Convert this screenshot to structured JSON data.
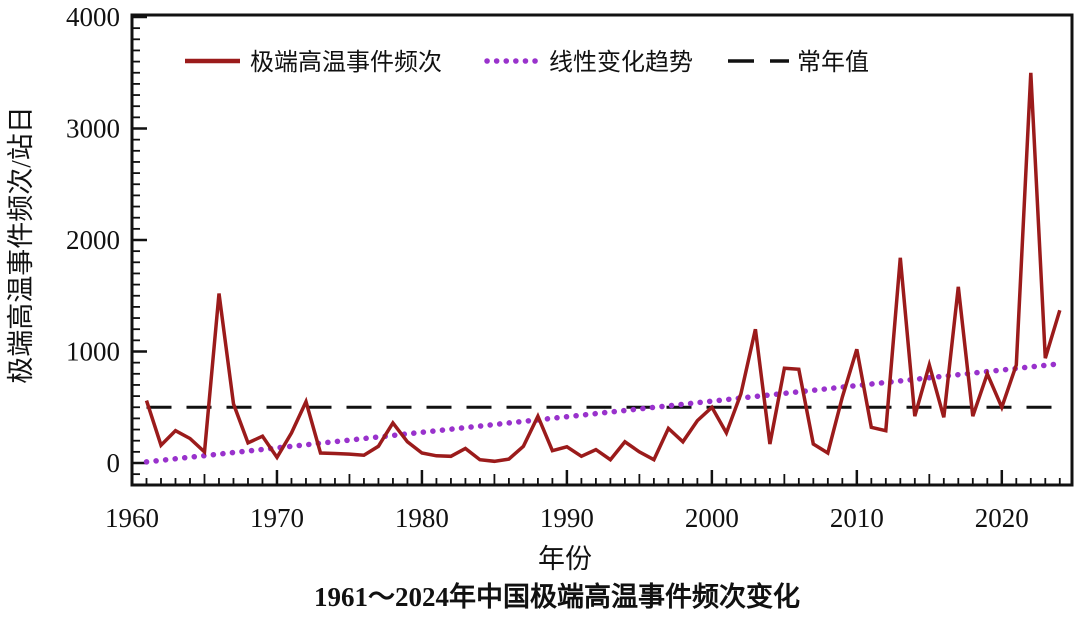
{
  "figure": {
    "title": "1961～2024年中国极端高温事件频次变化",
    "xlabel": "年份",
    "ylabel": "极端高温事件频次/站日"
  },
  "legend": {
    "position": "top-inside",
    "items": [
      {
        "label": "极端高温事件频次",
        "style": "solid",
        "color": "#9B1B1B"
      },
      {
        "label": "线性变化趋势",
        "style": "dotted",
        "color": "#9932CC"
      },
      {
        "label": "常年值",
        "style": "dashed",
        "color": "#111111"
      }
    ]
  },
  "chart_data": {
    "type": "line",
    "title": "1961～2024年中国极端高温事件频次变化",
    "xlabel": "年份",
    "ylabel": "极端高温事件频次/站日",
    "x_ticks": [
      1960,
      1970,
      1980,
      1990,
      2000,
      2010,
      2020
    ],
    "y_ticks": [
      0,
      1000,
      2000,
      3000,
      4000
    ],
    "xlim": [
      1960,
      2024.8
    ],
    "ylim": [
      -200,
      4020
    ],
    "grid": false,
    "series": [
      {
        "name": "极端高温事件频次",
        "x": [
          1961,
          1962,
          1963,
          1964,
          1965,
          1966,
          1967,
          1968,
          1969,
          1970,
          1971,
          1972,
          1973,
          1974,
          1975,
          1976,
          1977,
          1978,
          1979,
          1980,
          1981,
          1982,
          1983,
          1984,
          1985,
          1986,
          1987,
          1988,
          1989,
          1990,
          1991,
          1992,
          1993,
          1994,
          1995,
          1996,
          1997,
          1998,
          1999,
          2000,
          2001,
          2002,
          2003,
          2004,
          2005,
          2006,
          2007,
          2008,
          2009,
          2010,
          2011,
          2012,
          2013,
          2014,
          2015,
          2016,
          2017,
          2018,
          2019,
          2020,
          2021,
          2022,
          2023,
          2024
        ],
        "values": [
          560,
          160,
          290,
          220,
          100,
          1520,
          530,
          180,
          240,
          50,
          270,
          550,
          90,
          85,
          80,
          70,
          150,
          360,
          190,
          90,
          65,
          60,
          130,
          30,
          15,
          35,
          150,
          420,
          110,
          145,
          60,
          120,
          30,
          190,
          100,
          30,
          310,
          190,
          380,
          500,
          270,
          620,
          1200,
          170,
          850,
          840,
          170,
          90,
          590,
          1020,
          320,
          290,
          1840,
          420,
          880,
          410,
          1580,
          420,
          800,
          500,
          880,
          3500,
          940,
          1370
        ]
      }
    ],
    "trend_line": {
      "name": "线性变化趋势",
      "x_start": 1961,
      "y_start": 10,
      "x_end": 2024,
      "y_end": 890
    },
    "normal_line": {
      "name": "常年值",
      "value": 500,
      "x_start": 1961,
      "x_end": 2024
    },
    "colors": {
      "series": "#9B1B1B",
      "trend": "#9932CC",
      "normal": "#111111"
    }
  }
}
